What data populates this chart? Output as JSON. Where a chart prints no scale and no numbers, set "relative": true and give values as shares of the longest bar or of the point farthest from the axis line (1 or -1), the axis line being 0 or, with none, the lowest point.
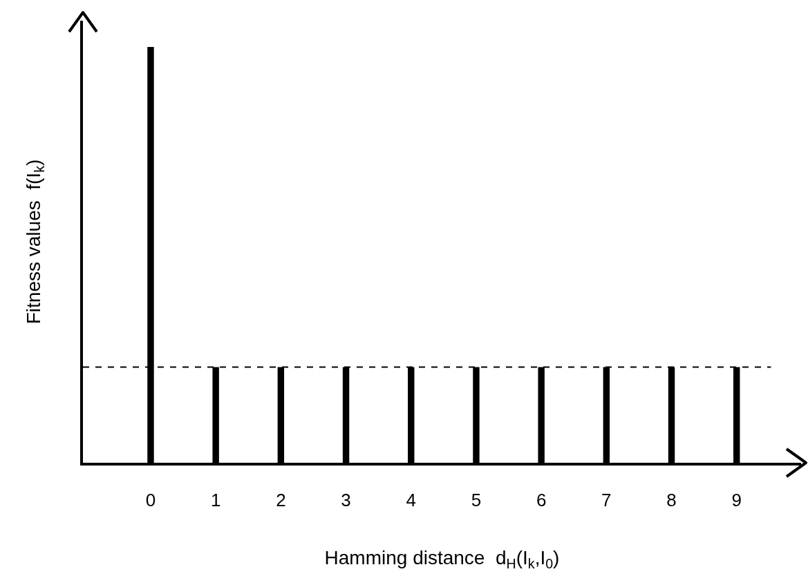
{
  "chart_data": {
    "type": "bar",
    "relative": true,
    "xlabel": "Hamming distance  d$_{H}$(I$_{k}$,I$_{0}$)",
    "ylabel": "Fitness values  f(I$_{k}$)",
    "categories": [
      "0",
      "1",
      "2",
      "3",
      "4",
      "5",
      "6",
      "7",
      "8",
      "9"
    ],
    "values": [
      1,
      0.23,
      0.23,
      0.23,
      0.23,
      0.23,
      0.23,
      0.23,
      0.23,
      0.23
    ],
    "color": "#000000",
    "tick_labels": "x",
    "ref_lines": [
      {
        "axis": "y",
        "value": 0.23,
        "line_style": "dashed",
        "color": "#000000"
      }
    ]
  }
}
